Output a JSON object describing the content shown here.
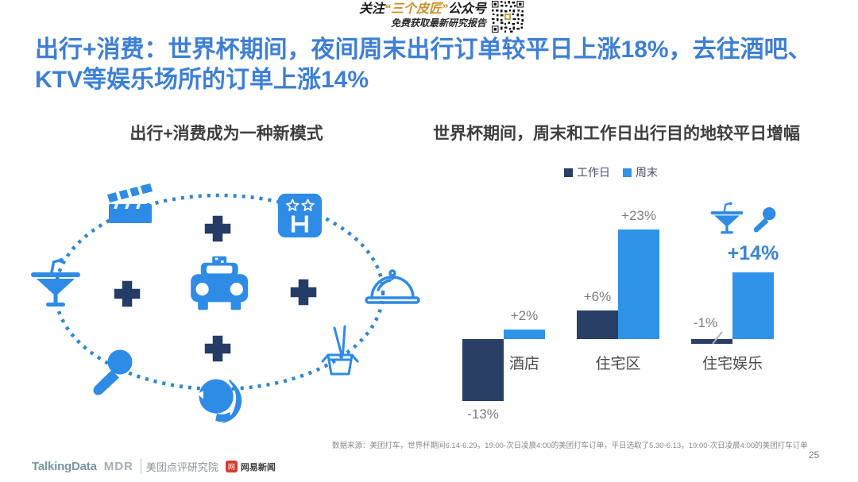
{
  "header": {
    "line1_prefix": "关注",
    "line1_highlight": "“三个皮匠”",
    "line1_suffix": "公众号",
    "line2": "免费获取最新研究报告",
    "qr_icon": "qr-code-icon"
  },
  "title": "出行+消费：世界杯期间，夜间周末出行订单较平日上涨18%，去往酒吧、KTV等娱乐场所的订单上涨14%",
  "left_panel": {
    "title": "出行+消费成为一种新模式",
    "icons": [
      "clapperboard-icon",
      "hotel-sign-icon",
      "cocktail-icon",
      "taxi-icon",
      "cloche-icon",
      "takeout-box-icon",
      "microphone-icon",
      "woman-head-icon"
    ],
    "plus_symbol": "+"
  },
  "right_panel": {
    "title": "世界杯期间，周末和工作日出行目的地较平日增幅",
    "decoration_icons": [
      "cocktail-icon",
      "microphone-icon"
    ]
  },
  "chart_data": {
    "type": "bar",
    "categories": [
      "酒店",
      "住宅区",
      "住宅娱乐"
    ],
    "series": [
      {
        "name": "工作日",
        "color": "#2a3f66",
        "values": [
          -13,
          6,
          -1
        ]
      },
      {
        "name": "周末",
        "color": "#2f93e8",
        "values": [
          2,
          23,
          14
        ]
      }
    ],
    "data_labels": [
      [
        "-13%",
        "+2%"
      ],
      [
        "+6%",
        "+23%"
      ],
      [
        "-1%",
        "+14%"
      ]
    ],
    "highlight_label": "+14%",
    "title": "世界杯期间，周末和工作日出行目的地较平日增幅",
    "xlabel": "",
    "ylabel": "",
    "ylim": [
      -15,
      25
    ],
    "grid": false,
    "legend_position": "top"
  },
  "footer": {
    "source": "数据来源：美团打车，世界杯期间6.14-6.29，19:00-次日凌晨4:00的美团打车订单，平日选取了5.30-6.13，19:00-次日凌晨4:00的美团打车订单",
    "logo_talkingdata": "TalkingData",
    "logo_mdr": "MDR",
    "logo_mdr_cn": "美团点评研究院",
    "logo_netease_glyph": "网",
    "logo_netease": "网易新闻",
    "page_number": "25"
  },
  "colors": {
    "title_blue": "#3d7fd5",
    "bar_dark": "#2a3f66",
    "bar_light": "#2f93e8",
    "icon_blue": "#2e8be6",
    "plus_navy": "#243c66",
    "highlight_gold": "#c8922e",
    "netease_red": "#d43c33"
  }
}
